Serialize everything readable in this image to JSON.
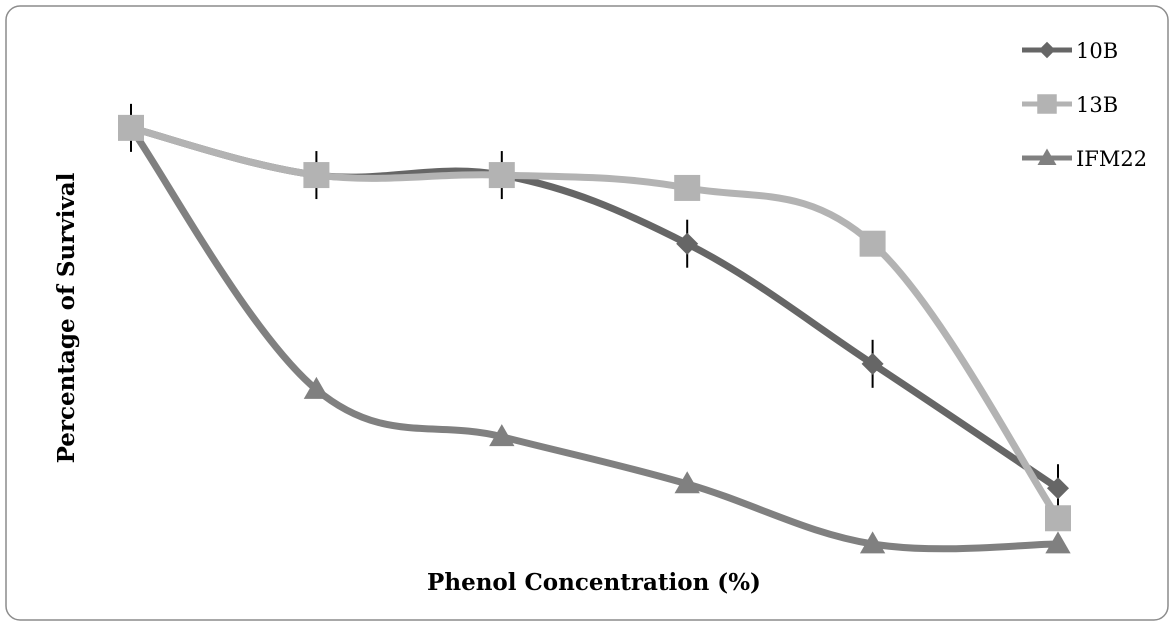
{
  "chart_data": {
    "type": "line",
    "title": "",
    "xlabel": "Phenol Concentration (%)",
    "ylabel": "Percentage of Survival",
    "x": [
      1,
      2,
      3,
      4,
      5,
      6
    ],
    "ylim": [
      0,
      100
    ],
    "grid": false,
    "legend_position": "top-right",
    "series": [
      {
        "name": "10B",
        "marker": "diamond",
        "color": "#666666",
        "values": [
          97,
          86,
          86,
          70,
          42,
          13
        ],
        "has_error_bars": true
      },
      {
        "name": "13B",
        "marker": "square",
        "color": "#b3b3b3",
        "values": [
          97,
          86,
          86,
          83,
          70,
          6
        ],
        "has_error_bars": false
      },
      {
        "name": "IFM22",
        "marker": "triangle",
        "color": "#808080",
        "values": [
          97,
          36,
          25,
          14,
          0,
          0
        ],
        "has_error_bars": false
      }
    ]
  }
}
